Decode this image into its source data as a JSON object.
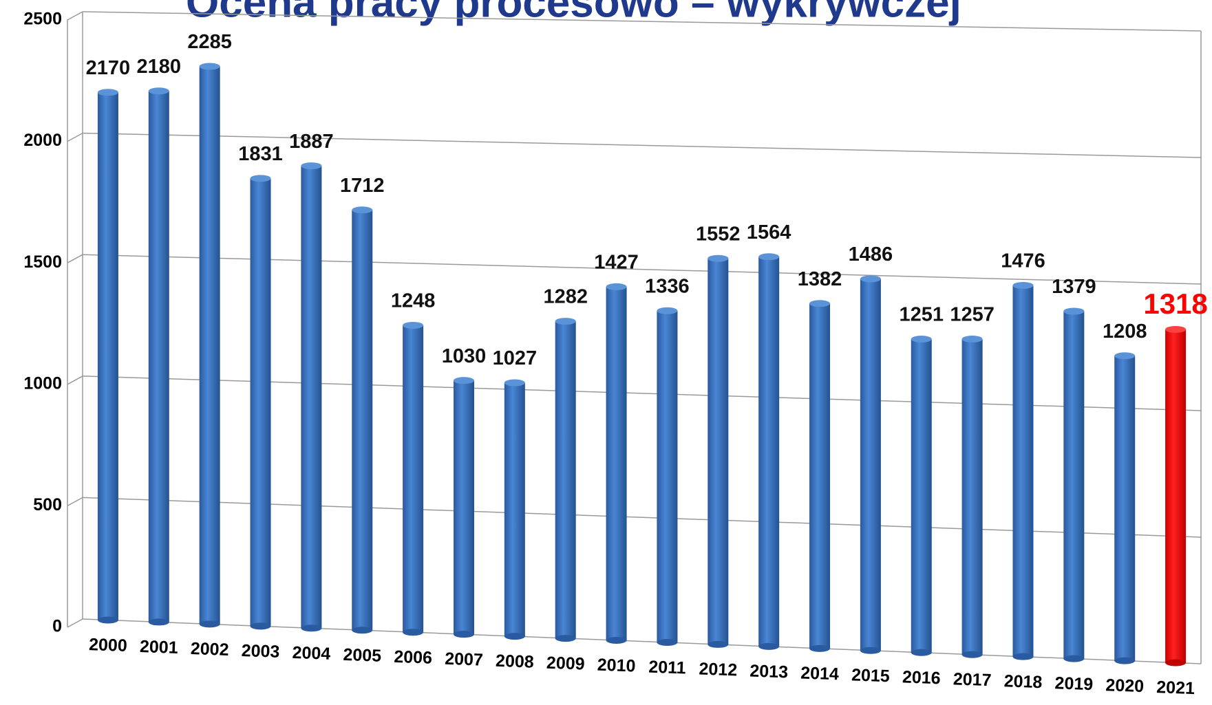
{
  "chart_data": {
    "type": "bar",
    "title": "Ocena pracy procesowo – wykrywczej",
    "categories": [
      "2000",
      "2001",
      "2002",
      "2003",
      "2004",
      "2005",
      "2006",
      "2007",
      "2008",
      "2009",
      "2010",
      "2011",
      "2012",
      "2013",
      "2014",
      "2015",
      "2016",
      "2017",
      "2018",
      "2019",
      "2020",
      "2021"
    ],
    "values": [
      2170,
      2180,
      2285,
      1831,
      1887,
      1712,
      1248,
      1030,
      1027,
      1282,
      1427,
      1336,
      1552,
      1564,
      1382,
      1486,
      1251,
      1257,
      1476,
      1379,
      1208,
      1318
    ],
    "colors": [
      "#3a72c0",
      "#3a72c0",
      "#3a72c0",
      "#3a72c0",
      "#3a72c0",
      "#3a72c0",
      "#3a72c0",
      "#3a72c0",
      "#3a72c0",
      "#3a72c0",
      "#3a72c0",
      "#3a72c0",
      "#3a72c0",
      "#3a72c0",
      "#3a72c0",
      "#3a72c0",
      "#3a72c0",
      "#3a72c0",
      "#3a72c0",
      "#3a72c0",
      "#3a72c0",
      "#ff0000"
    ],
    "ylim": [
      0,
      2500
    ],
    "yticks": [
      0,
      500,
      1000,
      1500,
      2000,
      2500
    ],
    "grid": true
  }
}
